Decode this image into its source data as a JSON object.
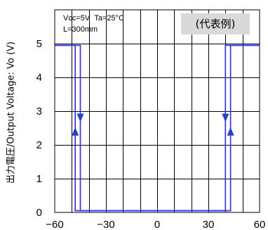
{
  "conditions": {
    "vcc_label": "Vcc=5V",
    "ta_label": "Ta=25°C",
    "l_label": "L=300mm"
  },
  "badge": "(代表例)",
  "chart_data": {
    "type": "line",
    "ylabel": "出力電圧/Output Voltage: Vo (V)",
    "xlabel": "",
    "xlim": [
      -60,
      60
    ],
    "ylim": [
      0,
      5
    ],
    "x_ticks": [
      -60,
      -30,
      0,
      30,
      60
    ],
    "x_tick_labels": [
      "−60",
      "−30",
      "0",
      "30",
      "60"
    ],
    "y_ticks": [
      0,
      1,
      2,
      3,
      4,
      5
    ],
    "y_tick_labels": [
      "0",
      "1",
      "2",
      "3",
      "4",
      "5"
    ],
    "grid": true,
    "series": [
      {
        "x": [
          -60,
          -45,
          -45,
          40,
          40,
          60
        ],
        "y": [
          4.95,
          4.95,
          0.05,
          0.05,
          4.95,
          4.95
        ]
      },
      {
        "x": [
          -60,
          -48,
          -48,
          43,
          43,
          60
        ],
        "y": [
          4.95,
          4.95,
          0.05,
          0.05,
          4.95,
          4.95
        ]
      }
    ],
    "arrows": [
      {
        "x": -45,
        "y": 2.8,
        "direction": "down"
      },
      {
        "x": -48,
        "y": 2.4,
        "direction": "up"
      },
      {
        "x": 40,
        "y": 2.8,
        "direction": "down"
      },
      {
        "x": 43,
        "y": 2.4,
        "direction": "up"
      }
    ],
    "colors": {
      "line": "#2a2aff",
      "grid": "#000000"
    }
  }
}
